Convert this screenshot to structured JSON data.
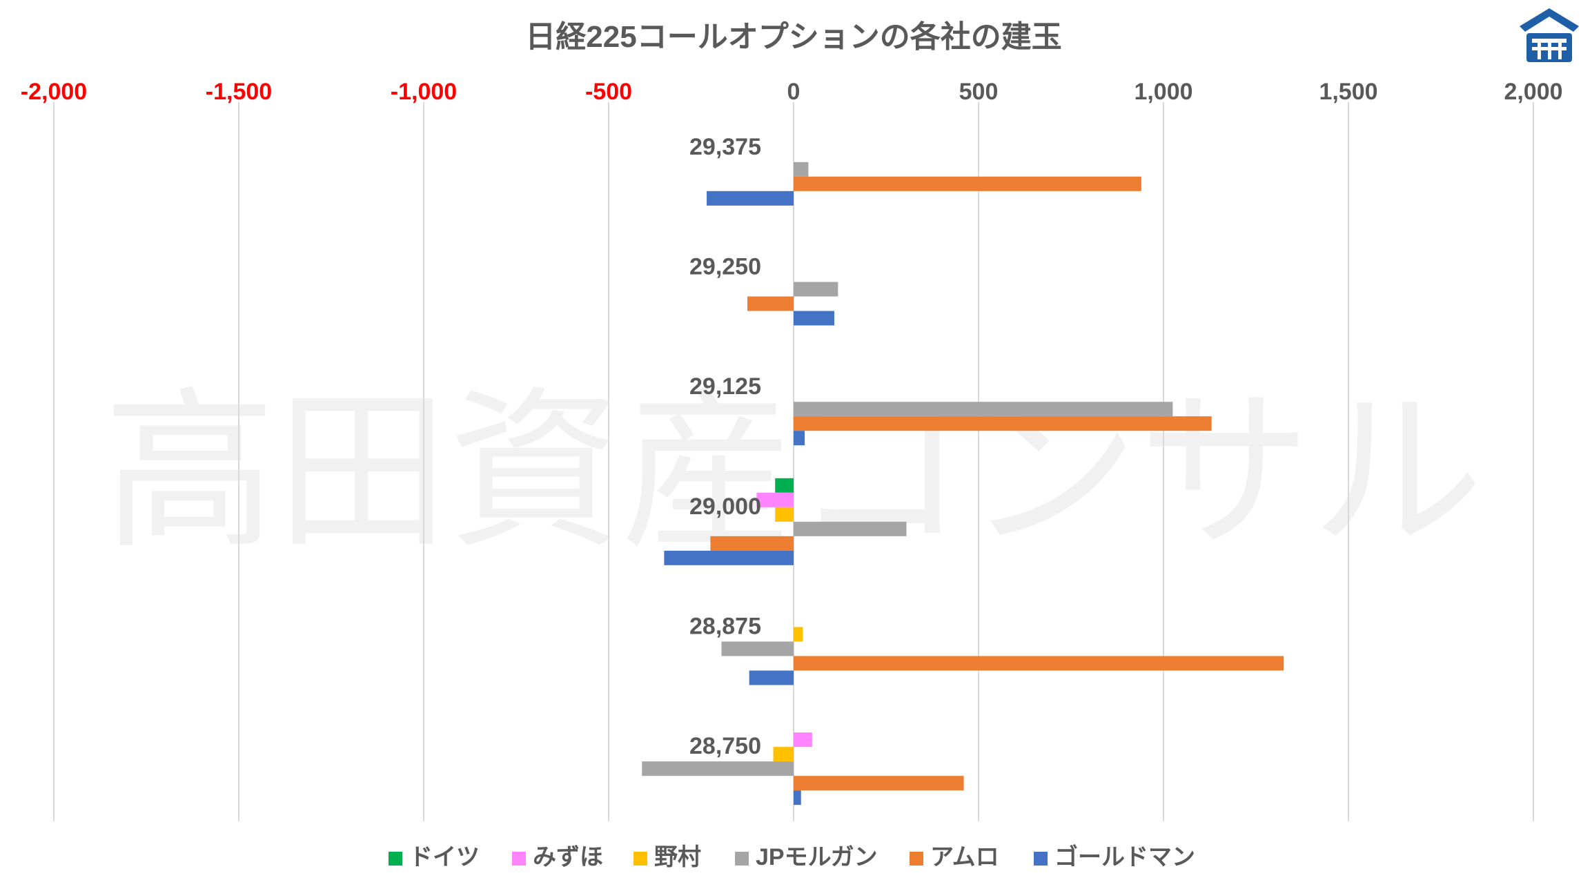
{
  "chart_data": {
    "type": "bar",
    "orientation": "horizontal",
    "title": "日経225コールオプションの各社の建玉",
    "watermark": "高田資産コンサル",
    "logo_icon": "house-roof-logo",
    "xlim": [
      -2000,
      2000
    ],
    "x_ticks": [
      {
        "value": -2000,
        "label": "-2,000",
        "color": "#ff0000"
      },
      {
        "value": -1500,
        "label": "-1,500",
        "color": "#ff0000"
      },
      {
        "value": -1000,
        "label": "-1,000",
        "color": "#ff0000"
      },
      {
        "value": -500,
        "label": "-500",
        "color": "#ff0000"
      },
      {
        "value": 0,
        "label": "0",
        "color": "#595959"
      },
      {
        "value": 500,
        "label": "500",
        "color": "#595959"
      },
      {
        "value": 1000,
        "label": "1,000",
        "color": "#595959"
      },
      {
        "value": 1500,
        "label": "1,500",
        "color": "#595959"
      },
      {
        "value": 2000,
        "label": "2,000",
        "color": "#595959"
      }
    ],
    "grid": true,
    "legend_position": "bottom",
    "categories": [
      "29,375",
      "29,250",
      "29,125",
      "29,000",
      "28,875",
      "28,750"
    ],
    "series": [
      {
        "name": "ドイツ",
        "color": "#00b050",
        "values": [
          0,
          0,
          0,
          -50,
          0,
          0
        ]
      },
      {
        "name": "みずほ",
        "color": "#ff84ff",
        "values": [
          0,
          0,
          0,
          -100,
          0,
          50
        ]
      },
      {
        "name": "野村",
        "color": "#ffc000",
        "values": [
          0,
          0,
          0,
          -50,
          25,
          -55
        ]
      },
      {
        "name": "JPモルガン",
        "color": "#a5a5a5",
        "values": [
          40,
          120,
          1025,
          305,
          -195,
          -410
        ]
      },
      {
        "name": "アムロ",
        "color": "#ed7d31",
        "values": [
          940,
          -125,
          1130,
          -225,
          1325,
          460
        ]
      },
      {
        "name": "ゴールドマン",
        "color": "#4472c4",
        "values": [
          -235,
          110,
          30,
          -350,
          -120,
          20
        ]
      }
    ]
  }
}
